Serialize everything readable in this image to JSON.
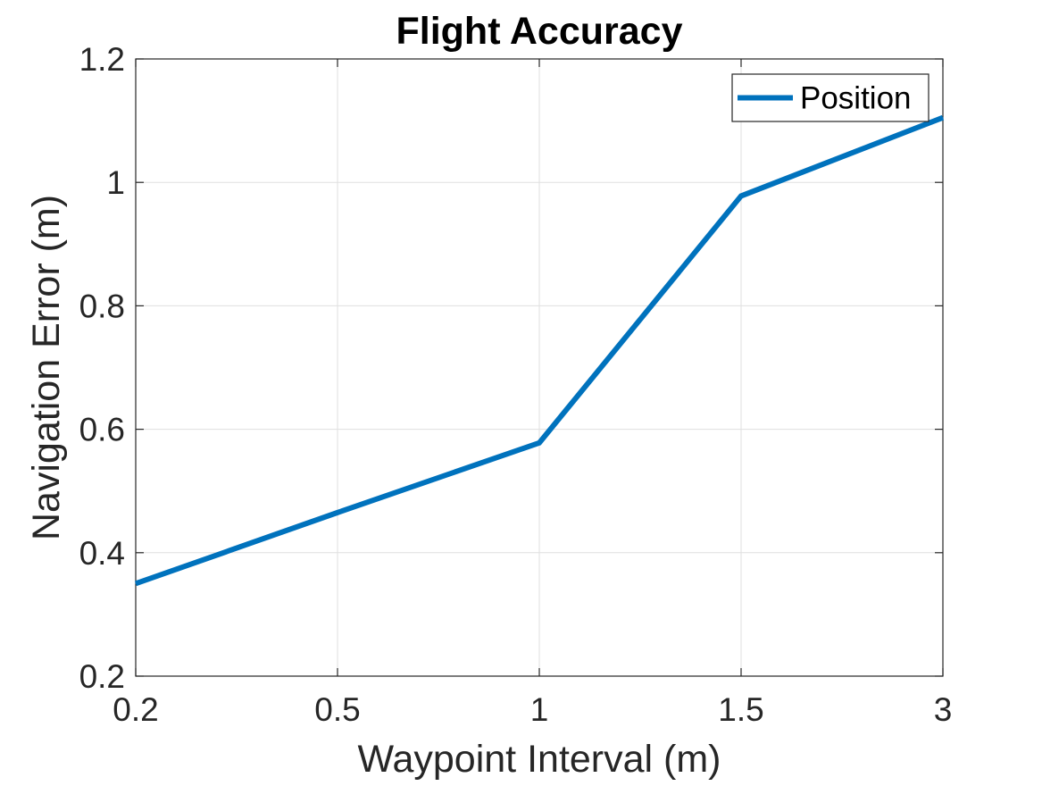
{
  "chart_data": {
    "type": "line",
    "title": "Flight Accuracy",
    "xlabel": "Waypoint Interval (m)",
    "ylabel": "Navigation Error (m)",
    "categories": [
      "0.2",
      "0.5",
      "1",
      "1.5",
      "3"
    ],
    "series": [
      {
        "name": "Position",
        "values": [
          0.35,
          0.465,
          0.578,
          0.978,
          1.105
        ],
        "color": "#0072BD"
      }
    ],
    "ylim": [
      0.2,
      1.2
    ],
    "yticks": [
      "0.2",
      "0.4",
      "0.6",
      "0.8",
      "1",
      "1.2"
    ],
    "grid": true,
    "legend_position": "top-right"
  }
}
